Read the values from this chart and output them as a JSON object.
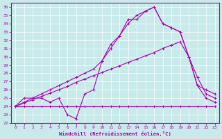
{
  "xlabel": "Windchill (Refroidissement éolien,°C)",
  "bg_color": "#c8eaea",
  "line_color": "#aa00aa",
  "grid_color": "#ffffff",
  "spine_color": "#aa00aa",
  "xlim": [
    -0.5,
    23.5
  ],
  "ylim": [
    22,
    36.5
  ],
  "yticks": [
    22,
    23,
    24,
    25,
    26,
    27,
    28,
    29,
    30,
    31,
    32,
    33,
    34,
    35,
    36
  ],
  "xticks": [
    0,
    1,
    2,
    3,
    4,
    5,
    6,
    7,
    8,
    9,
    10,
    11,
    12,
    13,
    14,
    15,
    16,
    17,
    18,
    19,
    20,
    21,
    22,
    23
  ],
  "series": [
    {
      "x": [
        0,
        1,
        2,
        3,
        4,
        5,
        6,
        7,
        8,
        9,
        10,
        11,
        12,
        13,
        14,
        15,
        16,
        17,
        18,
        19,
        20,
        21,
        22,
        23
      ],
      "y": [
        24,
        24,
        24,
        24,
        24,
        24,
        24,
        24,
        24,
        24,
        24,
        24,
        24,
        24,
        24,
        24,
        24,
        24,
        24,
        24,
        24,
        24,
        24,
        24
      ]
    },
    {
      "x": [
        0,
        1,
        2,
        3,
        4,
        5,
        6,
        7,
        8,
        9,
        10,
        11,
        12,
        13,
        14,
        15,
        16,
        17,
        18,
        19,
        20,
        21,
        22,
        23
      ],
      "y": [
        24,
        24.4,
        24.8,
        25.2,
        25.6,
        26.0,
        26.4,
        26.9,
        27.3,
        27.7,
        28.1,
        28.5,
        28.9,
        29.3,
        29.7,
        30.1,
        30.5,
        31.0,
        31.4,
        31.8,
        30.0,
        27.5,
        25.5,
        25.0
      ]
    },
    {
      "x": [
        0,
        1,
        2,
        3,
        4,
        5,
        6,
        7,
        8,
        9,
        10,
        11,
        12,
        13,
        14,
        15,
        16,
        17,
        18,
        19,
        20,
        21,
        22,
        23
      ],
      "y": [
        24,
        24.5,
        25.0,
        25.5,
        26.0,
        26.5,
        27.0,
        27.5,
        28.0,
        28.5,
        29.5,
        31.0,
        32.5,
        34.0,
        35.0,
        35.5,
        36.0,
        34.0,
        33.5,
        33.0,
        30.0,
        26.5,
        26.0,
        25.5
      ]
    },
    {
      "x": [
        0,
        1,
        2,
        3,
        4,
        5,
        6,
        7,
        8,
        9,
        10,
        11,
        12,
        13,
        14,
        15,
        16,
        17,
        18,
        19,
        20,
        21,
        22,
        23
      ],
      "y": [
        24,
        25.0,
        25.0,
        25.0,
        24.5,
        25.0,
        23.0,
        22.5,
        25.5,
        26.0,
        29.5,
        31.5,
        32.5,
        34.5,
        34.5,
        35.5,
        36.0,
        34.0,
        33.5,
        33.0,
        30.0,
        26.5,
        25.0,
        24.5
      ]
    }
  ]
}
